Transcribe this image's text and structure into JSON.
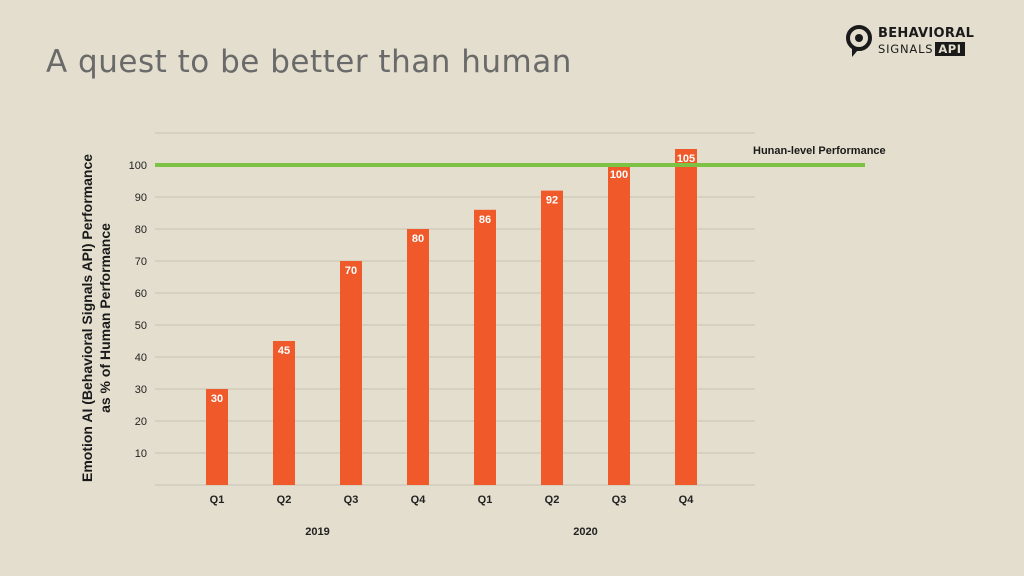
{
  "slide": {
    "title": "A quest to be better than human"
  },
  "logo": {
    "line1": "BEHAVIORAL",
    "line2": "SIGNALS",
    "badge": "API",
    "icon": "behavioral-signals-logo-icon"
  },
  "colors": {
    "background": "#e4dece",
    "bar": "#f05a2a",
    "reference_line": "#7dc243",
    "grid": "#c9c3b4"
  },
  "chart_data": {
    "type": "bar",
    "categories": [
      "Q1",
      "Q2",
      "Q3",
      "Q4",
      "Q1",
      "Q2",
      "Q3",
      "Q4"
    ],
    "groups": [
      {
        "label": "2019",
        "categories": [
          "Q1",
          "Q2",
          "Q3",
          "Q4"
        ]
      },
      {
        "label": "2020",
        "categories": [
          "Q1",
          "Q2",
          "Q3",
          "Q4"
        ]
      }
    ],
    "values": [
      30,
      45,
      70,
      80,
      86,
      92,
      100,
      105
    ],
    "data_labels": [
      "30",
      "45",
      "70",
      "80",
      "86",
      "92",
      "100",
      "105"
    ],
    "ylabel_line1": "Emotion AI (Behavioral Signals API) Performance",
    "ylabel_line2": "as % of Human Performance",
    "xlabel": "",
    "ylim": [
      0,
      110
    ],
    "yticks": [
      10,
      20,
      30,
      40,
      50,
      60,
      70,
      80,
      90,
      100
    ],
    "grid": true,
    "reference_line": {
      "value": 100,
      "label": "Hunan-level Performance"
    }
  }
}
